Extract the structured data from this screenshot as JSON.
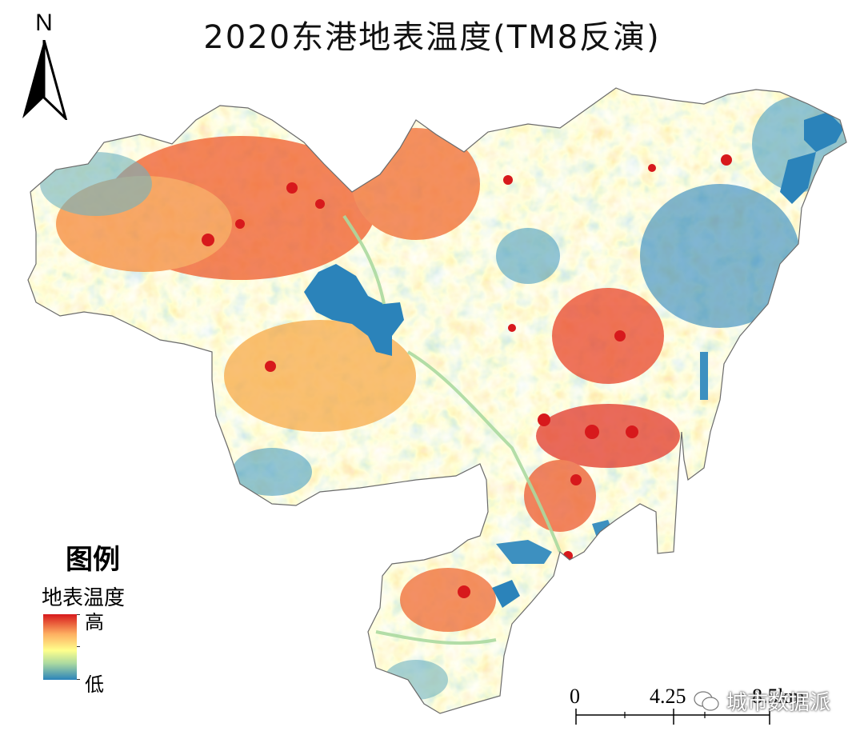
{
  "title": "2020东港地表温度(TM8反演)",
  "north_arrow": {
    "label": "N"
  },
  "legend": {
    "heading": "图例",
    "field": "地表温度",
    "high_label": "高",
    "low_label": "低",
    "ramp_colors": [
      "#d7191c",
      "#fdae61",
      "#ffff8c",
      "#abd9a0",
      "#2b83ba"
    ]
  },
  "scale_bar": {
    "labels": [
      "0",
      "4.25",
      "8.5"
    ],
    "unit": "km"
  },
  "watermark": {
    "text": "城市数据派"
  }
}
